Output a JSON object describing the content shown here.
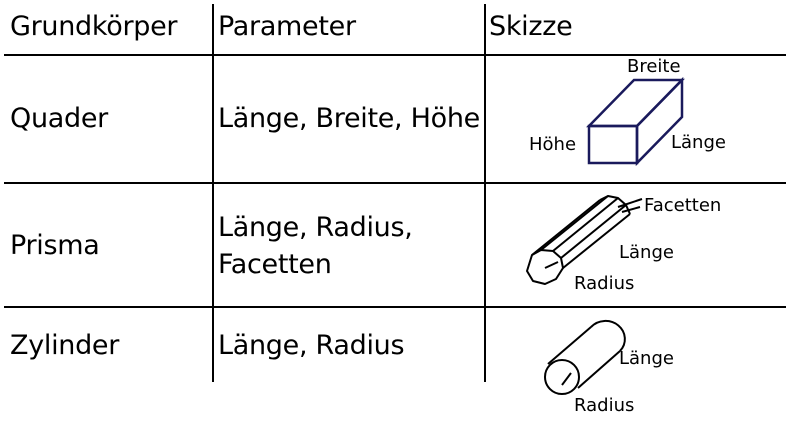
{
  "table": {
    "headers": [
      "Grundkörper",
      "Parameter",
      "Skizze"
    ],
    "rows": [
      {
        "body": "Quader",
        "params_line1": "Länge, Breite, Höhe",
        "params_line2": "",
        "sketch": {
          "labels": [
            "Breite",
            "Höhe",
            "Länge"
          ]
        }
      },
      {
        "body": "Prisma",
        "params_line1": "Länge, Radius,",
        "params_line2": "Facetten",
        "sketch": {
          "labels": [
            "Facetten",
            "Länge",
            "Radius"
          ]
        }
      },
      {
        "body": "Zylinder",
        "params_line1": "Länge, Radius",
        "params_line2": "",
        "sketch": {
          "labels": [
            "Länge",
            "Radius"
          ]
        }
      }
    ]
  },
  "colors": {
    "cuboid_stroke": "#1a1a5c",
    "line": "#000000"
  }
}
